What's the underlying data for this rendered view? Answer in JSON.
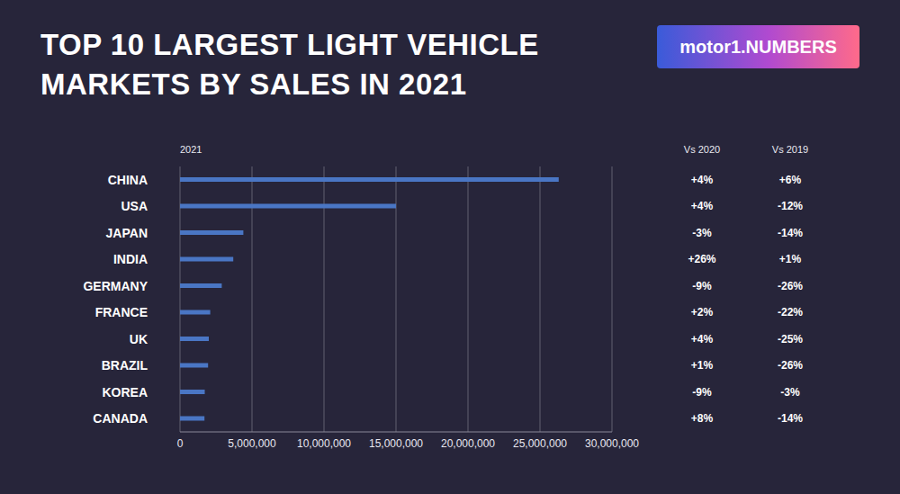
{
  "chart_data": {
    "type": "bar",
    "orientation": "horizontal",
    "title": "TOP 10 LARGEST LIGHT VEHICLE MARKETS BY SALES IN 2021",
    "logo": "motor1.NUMBERS",
    "x_label": "2021",
    "categories": [
      "CHINA",
      "USA",
      "JAPAN",
      "INDIA",
      "GERMANY",
      "FRANCE",
      "UK",
      "BRAZIL",
      "KOREA",
      "CANADA"
    ],
    "values": [
      26300000,
      15000000,
      4400000,
      3700000,
      2900000,
      2100000,
      2000000,
      1950000,
      1720000,
      1700000
    ],
    "color": "#4a76c4",
    "xlim": [
      0,
      30000000
    ],
    "xticks": [
      0,
      {
        "value": 5000000,
        "label": "5,000,000"
      },
      {
        "value": 10000000,
        "label": "10,000,000"
      },
      {
        "value": 15000000,
        "label": "15,000,000"
      },
      {
        "value": 20000000,
        "label": "20,000,000"
      },
      {
        "value": 25000000,
        "label": "25,000,000"
      },
      {
        "value": 30000000,
        "label": "30,000,000"
      }
    ],
    "grid": true,
    "columns": [
      {
        "header": "Vs 2020",
        "values": [
          4,
          4,
          -3,
          26,
          -9,
          2,
          4,
          1,
          -9,
          8
        ],
        "value_labels": [
          "+4%",
          "+4%",
          "-3%",
          "+26%",
          "-9%",
          "+2%",
          "+4%",
          "+1%",
          "-9%",
          "+8%"
        ]
      },
      {
        "header": "Vs 2019",
        "values": [
          6,
          -12,
          -14,
          1,
          -26,
          -22,
          -25,
          -26,
          -3,
          -14
        ],
        "value_labels": [
          "+6%",
          "-12%",
          "-14%",
          "+1%",
          "-26%",
          "-22%",
          "-25%",
          "-26%",
          "-3%",
          "-14%"
        ]
      }
    ]
  }
}
